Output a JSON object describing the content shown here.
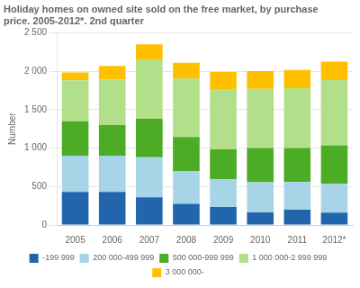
{
  "chart_data": {
    "type": "bar",
    "title": [
      "Holiday homes on owned site sold on the free market, by purchase",
      "price. 2005-2012*. 2nd quarter"
    ],
    "ylabel": "Number",
    "categories": [
      "2005",
      "2006",
      "2007",
      "2008",
      "2009",
      "2010",
      "2011",
      "2012*"
    ],
    "series": [
      {
        "name": "-199 999",
        "color": "#2166ac",
        "values": [
          430,
          430,
          360,
          275,
          235,
          165,
          200,
          160
        ]
      },
      {
        "name": "200 000-499 999",
        "color": "#a8d4e8",
        "values": [
          470,
          470,
          520,
          420,
          360,
          390,
          360,
          375
        ]
      },
      {
        "name": "500 000-999 999",
        "color": "#4dac26",
        "values": [
          450,
          400,
          500,
          450,
          390,
          445,
          440,
          500
        ]
      },
      {
        "name": "1 000 000-2 999 999",
        "color": "#b2df8a",
        "values": [
          530,
          590,
          775,
          760,
          775,
          770,
          780,
          850
        ]
      },
      {
        "name": "3 000 000-",
        "color": "#ffc000",
        "values": [
          105,
          180,
          195,
          205,
          230,
          230,
          235,
          240
        ]
      }
    ],
    "stacked": true,
    "ylim": [
      0,
      2500
    ],
    "yticks": [
      0,
      500,
      {
        "value": 1000,
        "label": "1 000"
      },
      {
        "value": 1500,
        "label": "1 500"
      },
      {
        "value": 2000,
        "label": "2 000"
      },
      {
        "value": 2500,
        "label": "2 500"
      }
    ],
    "grid": true,
    "legend": "bottom"
  }
}
